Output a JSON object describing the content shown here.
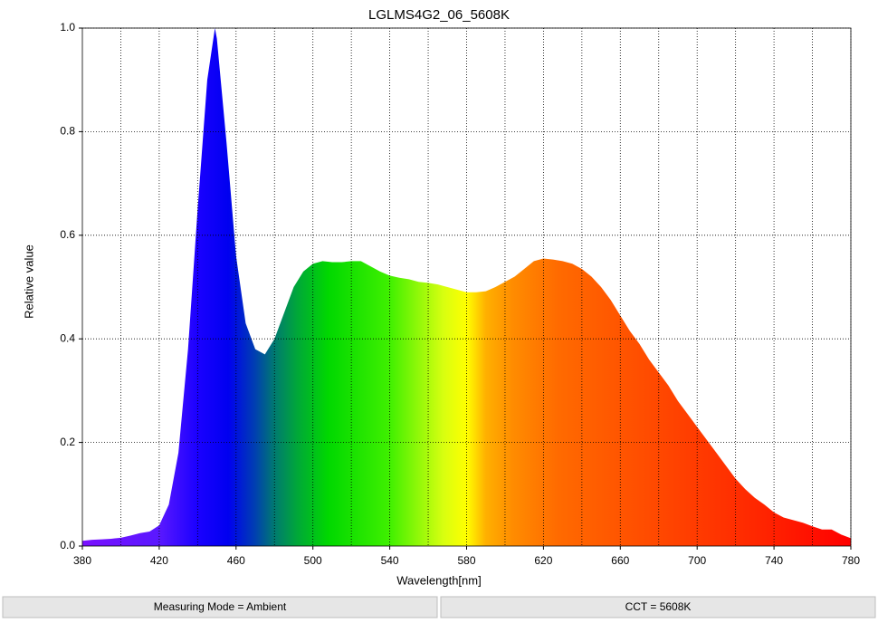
{
  "chart_data": {
    "type": "area",
    "title": "LGLMS4G2_06_5608K",
    "xlabel": "Wavelength[nm]",
    "ylabel": "Relative value",
    "x": [
      380,
      385,
      390,
      395,
      400,
      405,
      410,
      415,
      420,
      425,
      430,
      435,
      440,
      445,
      449,
      450,
      455,
      460,
      465,
      470,
      475,
      480,
      485,
      490,
      495,
      500,
      505,
      510,
      515,
      520,
      525,
      530,
      535,
      540,
      545,
      550,
      555,
      560,
      565,
      570,
      575,
      580,
      585,
      590,
      595,
      600,
      605,
      610,
      615,
      620,
      625,
      630,
      635,
      640,
      645,
      650,
      655,
      660,
      665,
      670,
      675,
      680,
      685,
      690,
      695,
      700,
      705,
      710,
      715,
      720,
      725,
      730,
      735,
      740,
      745,
      750,
      755,
      760,
      765,
      770,
      775,
      780
    ],
    "values": [
      0.01,
      0.012,
      0.013,
      0.014,
      0.016,
      0.02,
      0.025,
      0.028,
      0.04,
      0.08,
      0.18,
      0.38,
      0.65,
      0.9,
      1.0,
      0.98,
      0.78,
      0.56,
      0.43,
      0.38,
      0.37,
      0.4,
      0.45,
      0.5,
      0.53,
      0.545,
      0.55,
      0.548,
      0.548,
      0.55,
      0.55,
      0.54,
      0.53,
      0.522,
      0.518,
      0.515,
      0.51,
      0.508,
      0.505,
      0.5,
      0.495,
      0.49,
      0.49,
      0.492,
      0.5,
      0.51,
      0.52,
      0.535,
      0.55,
      0.555,
      0.553,
      0.55,
      0.545,
      0.535,
      0.52,
      0.5,
      0.475,
      0.445,
      0.415,
      0.39,
      0.36,
      0.335,
      0.31,
      0.28,
      0.255,
      0.23,
      0.205,
      0.18,
      0.155,
      0.13,
      0.11,
      0.093,
      0.08,
      0.065,
      0.055,
      0.05,
      0.045,
      0.038,
      0.032,
      0.032,
      0.022,
      0.015
    ],
    "xlim": [
      380,
      780
    ],
    "xticks": [
      380,
      420,
      460,
      500,
      540,
      580,
      620,
      660,
      700,
      740,
      780
    ],
    "xminorticks": [
      400,
      440,
      480,
      520,
      560,
      600,
      640,
      680,
      720,
      760
    ],
    "ylim": [
      0,
      1
    ],
    "yticks": [
      {
        "value": 0,
        "label": "0.0"
      },
      0.2,
      0.4,
      0.6,
      0.8,
      {
        "value": 1,
        "label": "1.0"
      }
    ],
    "grid": true
  },
  "footer": [
    "Measuring Mode = Ambient",
    "CCT = 5608K"
  ]
}
